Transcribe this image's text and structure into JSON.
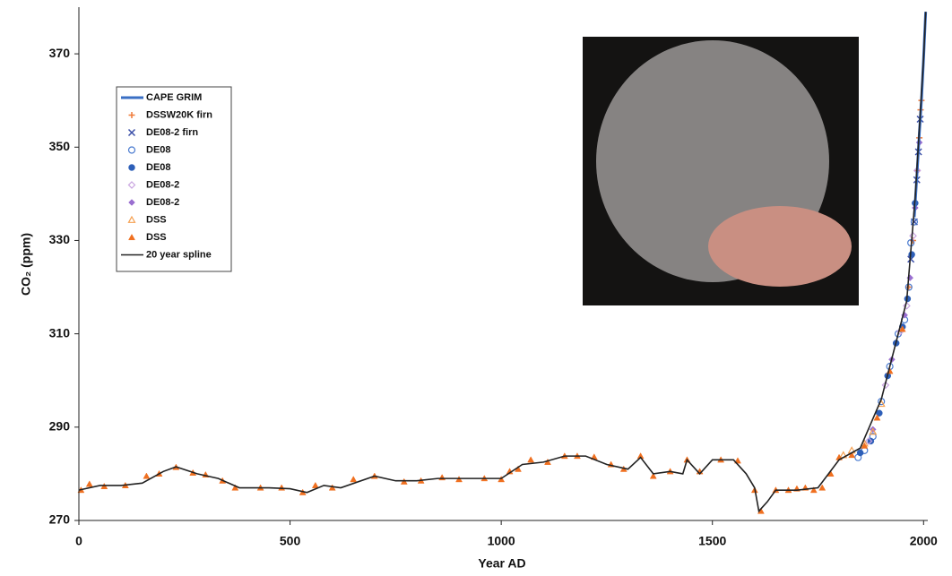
{
  "chart_data": {
    "type": "scatter",
    "x_label": "Year AD",
    "y_label": "CO₂ (ppm)",
    "xlim": [
      0,
      2010
    ],
    "ylim": [
      270,
      380
    ],
    "xticks": [
      0,
      500,
      1000,
      1500,
      2000
    ],
    "yticks": [
      270,
      290,
      310,
      330,
      350,
      370
    ],
    "series": [
      {
        "name": "CAPE GRIM",
        "color": "#3a6fc4",
        "marker": "line",
        "x": [
          1978,
          1985,
          1990,
          1995,
          2000,
          2005
        ],
        "values": [
          335,
          345,
          353,
          360,
          369,
          379
        ]
      },
      {
        "name": "DSSW20K firn",
        "color": "#f07c3a",
        "marker": "plus",
        "x": [
          1965,
          1975,
          1980,
          1985,
          1990,
          1993,
          1995
        ],
        "values": [
          320,
          330,
          338,
          345,
          352,
          358,
          360
        ]
      },
      {
        "name": "DE08-2 firn",
        "color": "#3b4fa8",
        "marker": "cross",
        "x": [
          1970,
          1978,
          1984,
          1988,
          1992
        ],
        "values": [
          326,
          334,
          343,
          349,
          356
        ]
      },
      {
        "name": "DE08",
        "color": "#4a7bd0",
        "marker": "circle-open",
        "x": [
          1845,
          1860,
          1880,
          1900,
          1920,
          1940,
          1955,
          1965,
          1970,
          1978
        ],
        "values": [
          283.5,
          285,
          288,
          295.5,
          303,
          310,
          313,
          320,
          329.5,
          334
        ]
      },
      {
        "name": "DE08",
        "color": "#2d5fb8",
        "marker": "circle",
        "x": [
          1850,
          1875,
          1895,
          1915,
          1935,
          1950,
          1962,
          1972,
          1980
        ],
        "values": [
          284.5,
          287,
          293,
          301,
          308,
          311.5,
          317.5,
          327,
          338
        ]
      },
      {
        "name": "DE08-2",
        "color": "#c9a4e0",
        "marker": "diamond-open",
        "x": [
          1870,
          1910,
          1945,
          1960,
          1975,
          1985
        ],
        "values": [
          287,
          299,
          310.5,
          316,
          331,
          345
        ]
      },
      {
        "name": "DE08-2",
        "color": "#9a6fd0",
        "marker": "diamond",
        "x": [
          1880,
          1925,
          1955,
          1968,
          1980,
          1990
        ],
        "values": [
          289.5,
          304.5,
          314,
          322,
          337,
          351
        ]
      },
      {
        "name": "DSS",
        "color": "#f5a050",
        "marker": "triangle-open",
        "x": [
          1810,
          1830,
          1860,
          1880,
          1900
        ],
        "values": [
          284,
          285,
          286.5,
          289,
          295
        ]
      },
      {
        "name": "DSS",
        "color": "#f07020",
        "marker": "triangle",
        "x": [
          5,
          25,
          60,
          110,
          160,
          190,
          230,
          270,
          300,
          340,
          370,
          430,
          480,
          530,
          560,
          600,
          650,
          700,
          770,
          810,
          860,
          900,
          960,
          1000,
          1020,
          1040,
          1070,
          1110,
          1150,
          1180,
          1220,
          1260,
          1290,
          1330,
          1360,
          1400,
          1440,
          1470,
          1520,
          1560,
          1600,
          1615,
          1650,
          1680,
          1700,
          1720,
          1740,
          1760,
          1780,
          1800,
          1830,
          1860,
          1890,
          1920,
          1950
        ],
        "values": [
          276.5,
          277.8,
          277.3,
          277.5,
          279.5,
          280,
          281.4,
          280.2,
          279.8,
          278.5,
          277,
          277,
          277,
          276,
          277.5,
          277,
          278.8,
          279.5,
          278.3,
          278.5,
          279.2,
          278.8,
          279,
          278.8,
          280.5,
          281,
          283,
          282.5,
          283.8,
          283.8,
          283.6,
          282,
          281,
          283.8,
          279.5,
          280.5,
          283,
          280.5,
          283,
          282.8,
          276.5,
          272,
          276.5,
          276.5,
          276.8,
          277,
          276.5,
          277,
          280,
          283.5,
          284,
          286,
          292,
          302,
          311
        ]
      },
      {
        "name": "20 year spline",
        "color": "#222222",
        "marker": "line",
        "x": [
          0,
          50,
          100,
          150,
          200,
          230,
          280,
          330,
          380,
          450,
          500,
          540,
          580,
          620,
          700,
          750,
          800,
          850,
          900,
          950,
          1000,
          1050,
          1100,
          1150,
          1200,
          1250,
          1300,
          1330,
          1360,
          1400,
          1430,
          1440,
          1470,
          1500,
          1550,
          1580,
          1600,
          1610,
          1630,
          1650,
          1700,
          1750,
          1800,
          1850,
          1900,
          1940,
          1960,
          1980,
          2000,
          2005
        ],
        "values": [
          276.5,
          277.5,
          277.5,
          278,
          280.5,
          281.5,
          280,
          279,
          277,
          277,
          276.8,
          276,
          277.5,
          277,
          279.5,
          278.5,
          278.5,
          279,
          279,
          279,
          279,
          282,
          282.5,
          283.8,
          283.8,
          282,
          281,
          283.5,
          280,
          280.5,
          280,
          283,
          280,
          283,
          283,
          280,
          277,
          272,
          274,
          276.5,
          276.5,
          277,
          283,
          285.5,
          296,
          310,
          317,
          339,
          369,
          379
        ]
      }
    ]
  }
}
